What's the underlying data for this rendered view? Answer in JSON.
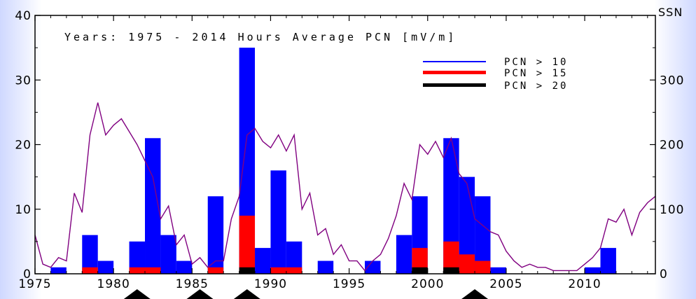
{
  "chart_data": {
    "type": "bar",
    "title": "Years:  1975  -  2014    Hours Average PCN  [mV/m]",
    "y2label": "SSN",
    "xlim": [
      1975,
      2014.5
    ],
    "ylim": [
      0,
      40
    ],
    "y2lim": [
      0,
      400
    ],
    "x_ticks": [
      1975,
      1980,
      1985,
      1990,
      1995,
      2000,
      2005,
      2010
    ],
    "y_ticks": [
      0,
      10,
      20,
      30,
      40
    ],
    "y2_ticks": [
      0,
      100,
      200,
      300
    ],
    "bin_width": 1,
    "years": [
      1975,
      1976,
      1977,
      1978,
      1979,
      1980,
      1981,
      1982,
      1983,
      1984,
      1985,
      1986,
      1987,
      1988,
      1989,
      1990,
      1991,
      1992,
      1993,
      1994,
      1995,
      1996,
      1997,
      1998,
      1999,
      2000,
      2001,
      2002,
      2003,
      2004,
      2005,
      2006,
      2007,
      2008,
      2009,
      2010,
      2011,
      2012,
      2013,
      2014
    ],
    "series": [
      {
        "name": "PCN  >  10",
        "color": "#0000ff",
        "values": [
          0,
          1,
          0,
          6,
          2,
          0,
          5,
          21,
          6,
          2,
          0,
          12,
          0,
          35,
          4,
          16,
          5,
          0,
          2,
          0,
          0,
          2,
          0,
          6,
          12,
          0,
          21,
          15,
          12,
          1,
          0,
          0,
          0,
          0,
          0,
          1,
          4,
          0,
          0,
          0
        ]
      },
      {
        "name": "PCN  >  15",
        "color": "#ff0000",
        "values": [
          0,
          0,
          0,
          1,
          0,
          0,
          1,
          1,
          0,
          0,
          0,
          1,
          0,
          9,
          0,
          1,
          1,
          0,
          0,
          0,
          0,
          0,
          0,
          0,
          4,
          0,
          5,
          3,
          2,
          0,
          0,
          0,
          0,
          0,
          0,
          0,
          0,
          0,
          0,
          0
        ]
      },
      {
        "name": "PCN  >  20",
        "color": "#000000",
        "values": [
          0,
          0,
          0,
          0,
          0,
          0,
          0,
          0,
          0,
          0,
          0,
          0,
          0,
          1,
          0,
          0,
          0,
          0,
          0,
          0,
          0,
          0,
          0,
          0,
          1,
          0,
          1,
          0,
          0,
          0,
          0,
          0,
          0,
          0,
          0,
          0,
          0,
          0,
          0,
          0
        ]
      }
    ],
    "ssn": {
      "color": "#800080",
      "x": [
        1975,
        1975.5,
        1976,
        1976.5,
        1977,
        1977.5,
        1978,
        1978.5,
        1979,
        1979.5,
        1980,
        1980.5,
        1981,
        1981.5,
        1982,
        1982.5,
        1983,
        1983.5,
        1984,
        1984.5,
        1985,
        1985.5,
        1986,
        1986.5,
        1987,
        1987.5,
        1988,
        1988.5,
        1989,
        1989.5,
        1990,
        1990.5,
        1991,
        1991.5,
        1992,
        1992.5,
        1993,
        1993.5,
        1994,
        1994.5,
        1995,
        1995.5,
        1996,
        1996.5,
        1997,
        1997.5,
        1998,
        1998.5,
        1999,
        1999.5,
        2000,
        2000.5,
        2001,
        2001.5,
        2002,
        2002.5,
        2003,
        2003.5,
        2004,
        2004.5,
        2005,
        2005.5,
        2006,
        2006.5,
        2007,
        2007.5,
        2008,
        2008.5,
        2009,
        2009.5,
        2010,
        2010.5,
        2011,
        2011.5,
        2012,
        2012.5,
        2013,
        2013.5,
        2014,
        2014.5
      ],
      "values": [
        60,
        15,
        10,
        25,
        20,
        125,
        95,
        215,
        265,
        215,
        230,
        240,
        220,
        200,
        175,
        150,
        85,
        105,
        45,
        60,
        15,
        25,
        10,
        20,
        20,
        85,
        120,
        215,
        225,
        205,
        195,
        215,
        190,
        215,
        100,
        125,
        60,
        70,
        30,
        45,
        20,
        20,
        5,
        20,
        30,
        55,
        90,
        140,
        115,
        200,
        185,
        205,
        180,
        210,
        155,
        140,
        85,
        75,
        65,
        60,
        35,
        20,
        10,
        15,
        10,
        10,
        5,
        5,
        5,
        5,
        15,
        25,
        40,
        85,
        80,
        100,
        60,
        95,
        110,
        120
      ]
    },
    "markers": [
      1981.5,
      1985.5,
      1988.5,
      2003
    ]
  }
}
